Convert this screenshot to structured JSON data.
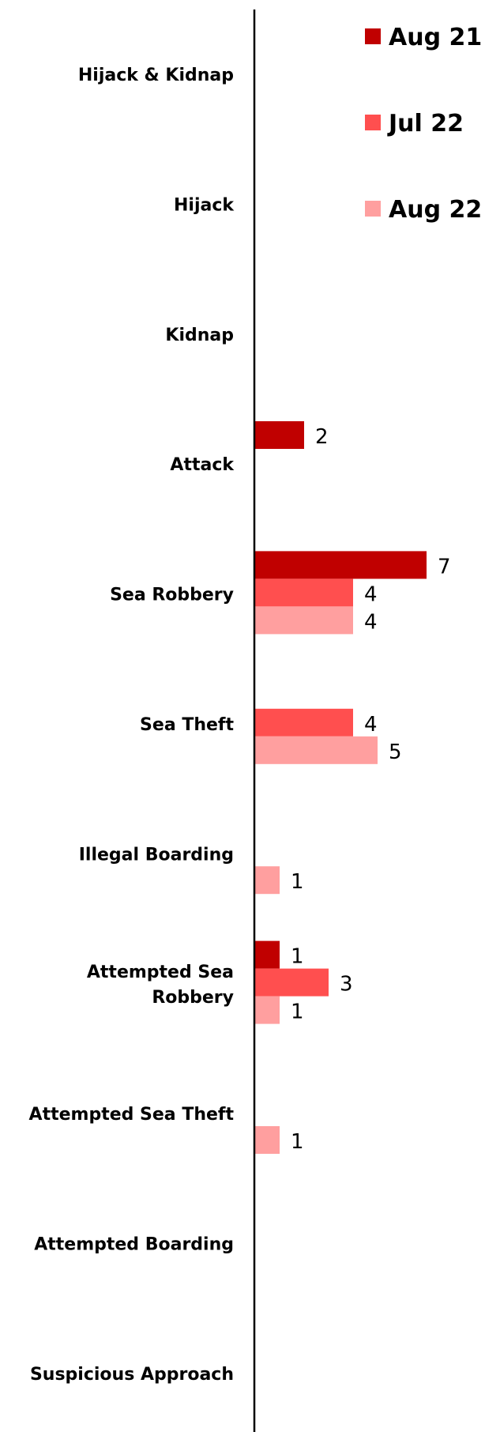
{
  "chart_data": {
    "type": "bar",
    "orientation": "horizontal",
    "categories": [
      [
        "Hijack & Kidnap"
      ],
      [
        "Hijack"
      ],
      [
        "Kidnap"
      ],
      [
        "Attack"
      ],
      [
        "Sea Robbery"
      ],
      [
        "Sea Theft"
      ],
      [
        "Illegal Boarding"
      ],
      [
        "Attempted Sea",
        "Robbery"
      ],
      [
        "Attempted Sea Theft"
      ],
      [
        "Attempted Boarding"
      ],
      [
        "Suspicious Approach"
      ]
    ],
    "series": [
      {
        "name": "Aug 21",
        "color": "#c00000",
        "values": [
          0,
          0,
          0,
          2,
          7,
          0,
          0,
          1,
          0,
          0,
          0
        ]
      },
      {
        "name": "Jul 22",
        "color": "#ff4f4f",
        "values": [
          0,
          0,
          0,
          0,
          4,
          4,
          0,
          3,
          0,
          0,
          0
        ]
      },
      {
        "name": "Aug 22",
        "color": "#ff9f9f",
        "values": [
          0,
          0,
          0,
          0,
          4,
          5,
          1,
          1,
          1,
          0,
          0
        ]
      }
    ],
    "xlim": [
      0,
      7
    ],
    "grid": false,
    "legend": "top-right",
    "data_labels": "non-zero values shown at bar end"
  }
}
